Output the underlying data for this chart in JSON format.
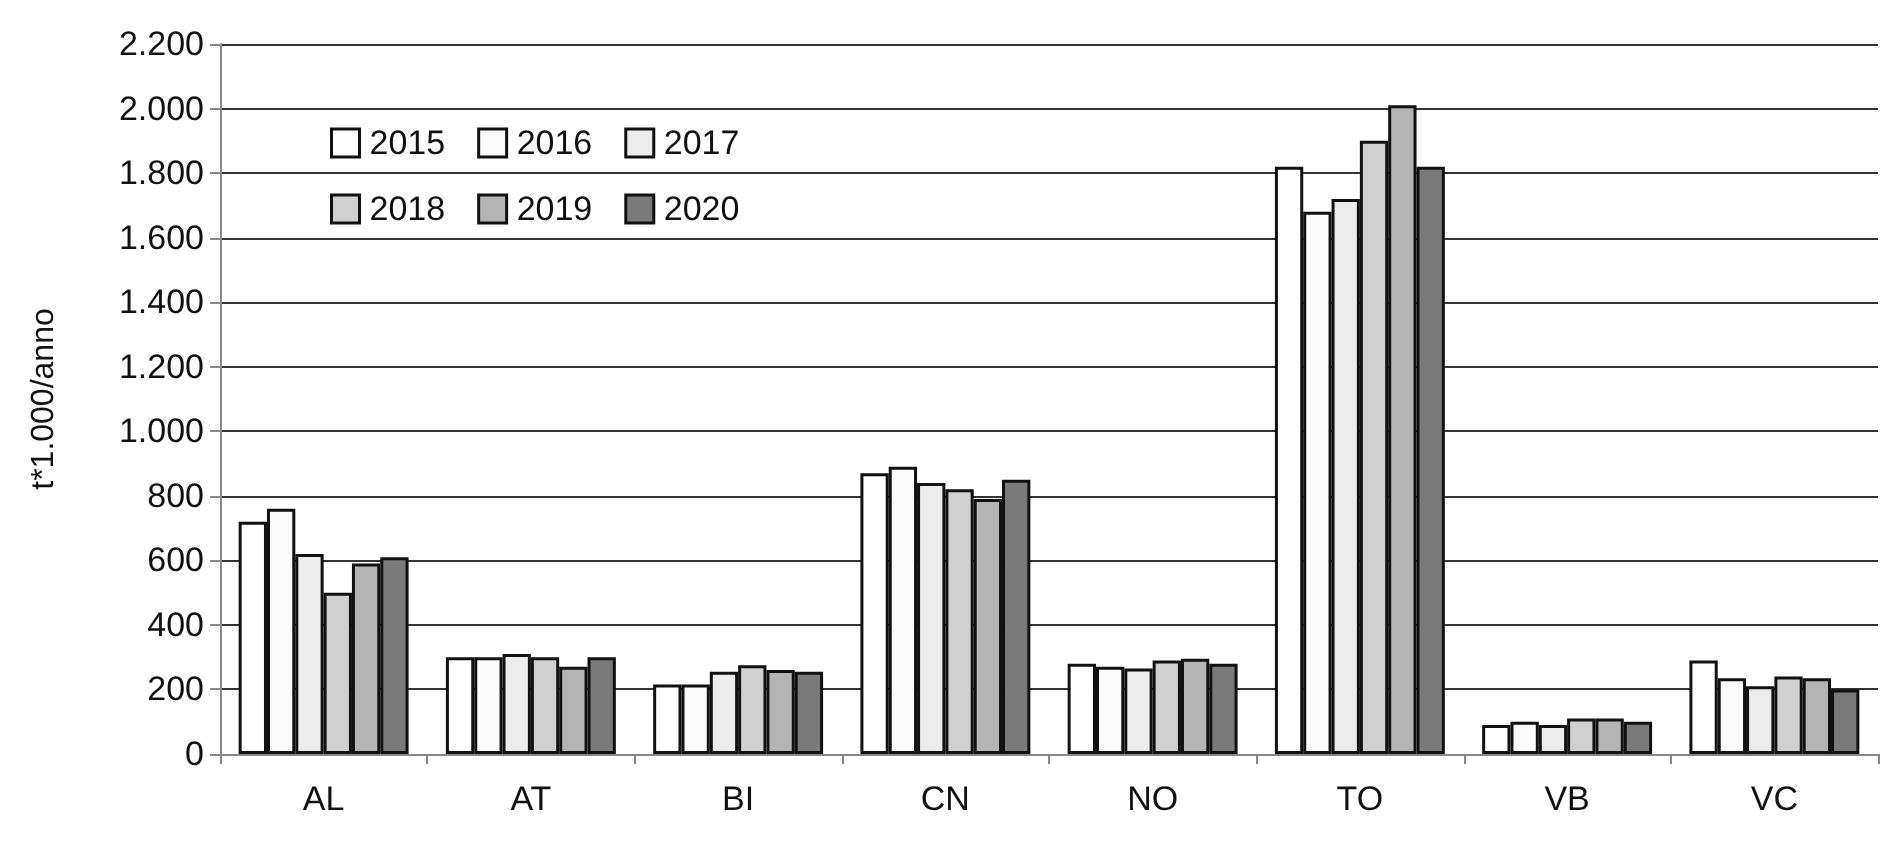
{
  "chart_data": {
    "type": "bar",
    "ylabel": "t*1.000/anno",
    "categories": [
      "AL",
      "AT",
      "BI",
      "CN",
      "NO",
      "TO",
      "VB",
      "VC"
    ],
    "series": [
      {
        "name": "2015",
        "color": "#ffffff",
        "values": [
          720,
          300,
          215,
          870,
          280,
          1820,
          90,
          290
        ]
      },
      {
        "name": "2016",
        "color": "#fbfbfb",
        "values": [
          760,
          300,
          215,
          890,
          270,
          1680,
          100,
          235
        ]
      },
      {
        "name": "2017",
        "color": "#ececec",
        "values": [
          620,
          310,
          255,
          840,
          265,
          1720,
          90,
          210
        ]
      },
      {
        "name": "2018",
        "color": "#d0d0d0",
        "values": [
          500,
          300,
          275,
          820,
          290,
          1900,
          110,
          240
        ]
      },
      {
        "name": "2019",
        "color": "#b4b4b4",
        "values": [
          590,
          270,
          260,
          790,
          295,
          2010,
          110,
          235
        ]
      },
      {
        "name": "2020",
        "color": "#7a7a7a",
        "values": [
          610,
          300,
          255,
          850,
          280,
          1820,
          100,
          200
        ]
      }
    ],
    "ylim": [
      0,
      2200
    ],
    "yticks": [
      0,
      200,
      400,
      600,
      800,
      {
        "value": 1000,
        "label": "1.000"
      },
      {
        "value": 1200,
        "label": "1.200"
      },
      {
        "value": 1400,
        "label": "1.400"
      },
      {
        "value": 1600,
        "label": "1.600"
      },
      {
        "value": 1800,
        "label": "1.800"
      },
      {
        "value": 2000,
        "label": "2.000"
      },
      {
        "value": 2200,
        "label": "2.200"
      }
    ],
    "grid": "y",
    "legend": "top left"
  }
}
